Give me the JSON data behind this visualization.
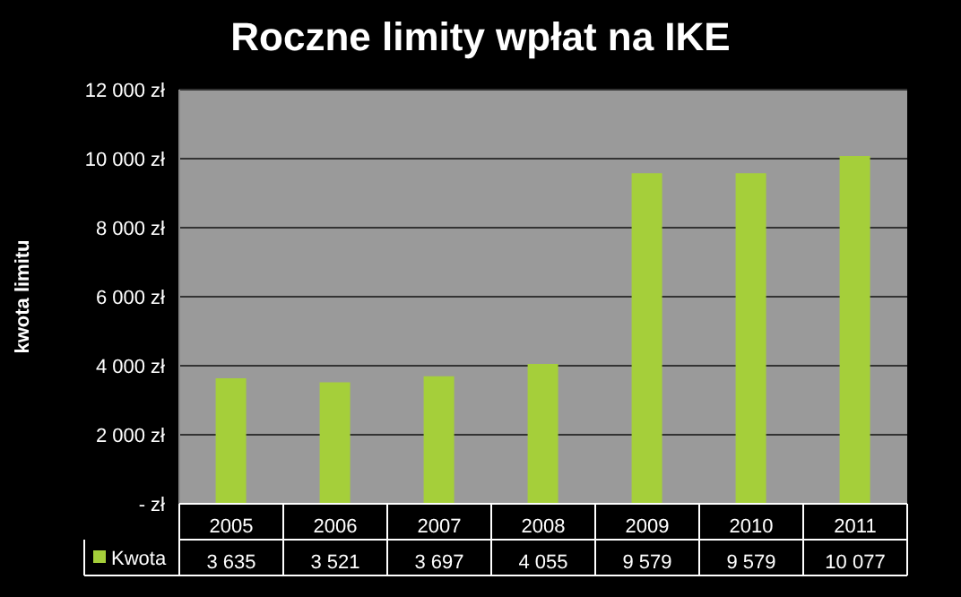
{
  "chart_data": {
    "type": "bar",
    "title": "Roczne limity wpłat na IKE",
    "ylabel": "kwota limitu",
    "categories": [
      "2005",
      "2006",
      "2007",
      "2008",
      "2009",
      "2010",
      "2011"
    ],
    "series": [
      {
        "name": "Kwota",
        "color": "#a5cf3a",
        "values": [
          3635,
          3521,
          3697,
          4055,
          9579,
          9579,
          10077
        ],
        "value_labels": [
          "3 635",
          "3 521",
          "3 697",
          "4 055",
          "9 579",
          "9 579",
          "10 077"
        ]
      }
    ],
    "ylim": [
      0,
      12000
    ],
    "yticks": [
      {
        "value": 0,
        "label": "-  zł"
      },
      {
        "value": 2000,
        "label": "2 000 zł"
      },
      {
        "value": 4000,
        "label": "4 000 zł"
      },
      {
        "value": 6000,
        "label": "6 000 zł"
      },
      {
        "value": 8000,
        "label": "8 000 zł"
      },
      {
        "value": 10000,
        "label": "10 000 zł"
      },
      {
        "value": 12000,
        "label": "12 000 zł"
      }
    ],
    "grid": "y",
    "legend": "bottom"
  }
}
